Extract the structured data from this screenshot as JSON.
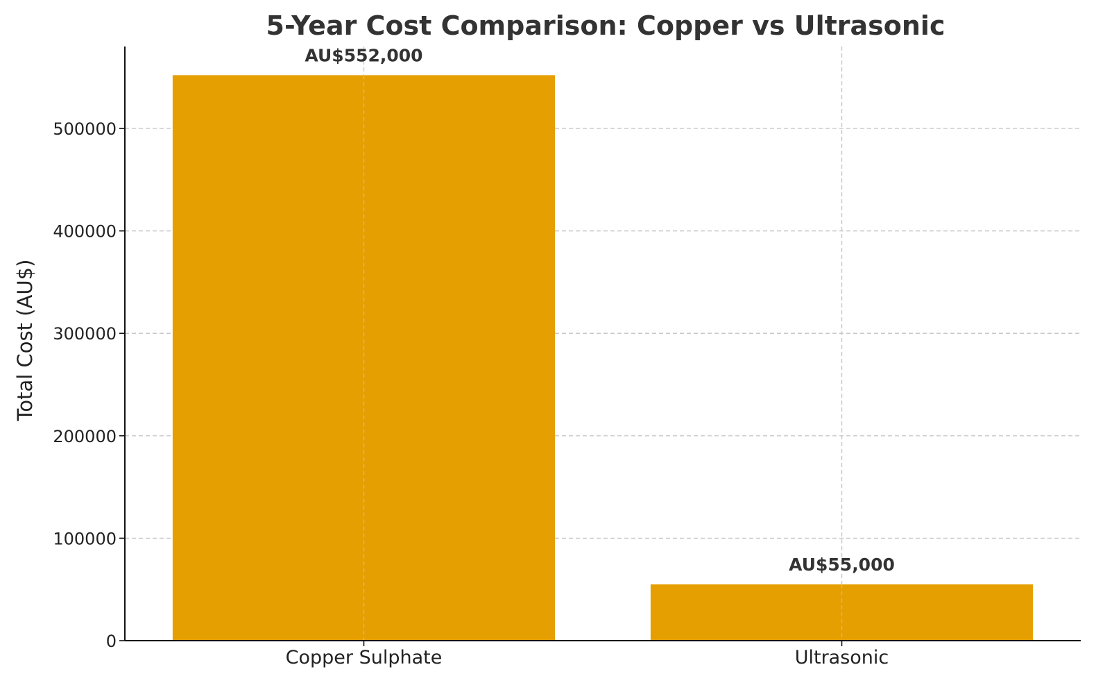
{
  "chart_data": {
    "type": "bar",
    "title": "5-Year Cost Comparison: Copper vs Ultrasonic",
    "xlabel": "",
    "ylabel": "Total Cost (AU$)",
    "categories": [
      "Copper Sulphate",
      "Ultrasonic"
    ],
    "values": [
      552000,
      55000
    ],
    "data_labels": [
      "AU$552,000",
      "AU$55,000"
    ],
    "ylim": [
      0,
      580000
    ],
    "yticks": [
      0,
      100000,
      200000,
      300000,
      400000,
      500000
    ],
    "ytick_labels": [
      "0",
      "100000",
      "200000",
      "300000",
      "400000",
      "500000"
    ],
    "bar_color": "#E69F00",
    "grid": true,
    "legend": "none"
  }
}
